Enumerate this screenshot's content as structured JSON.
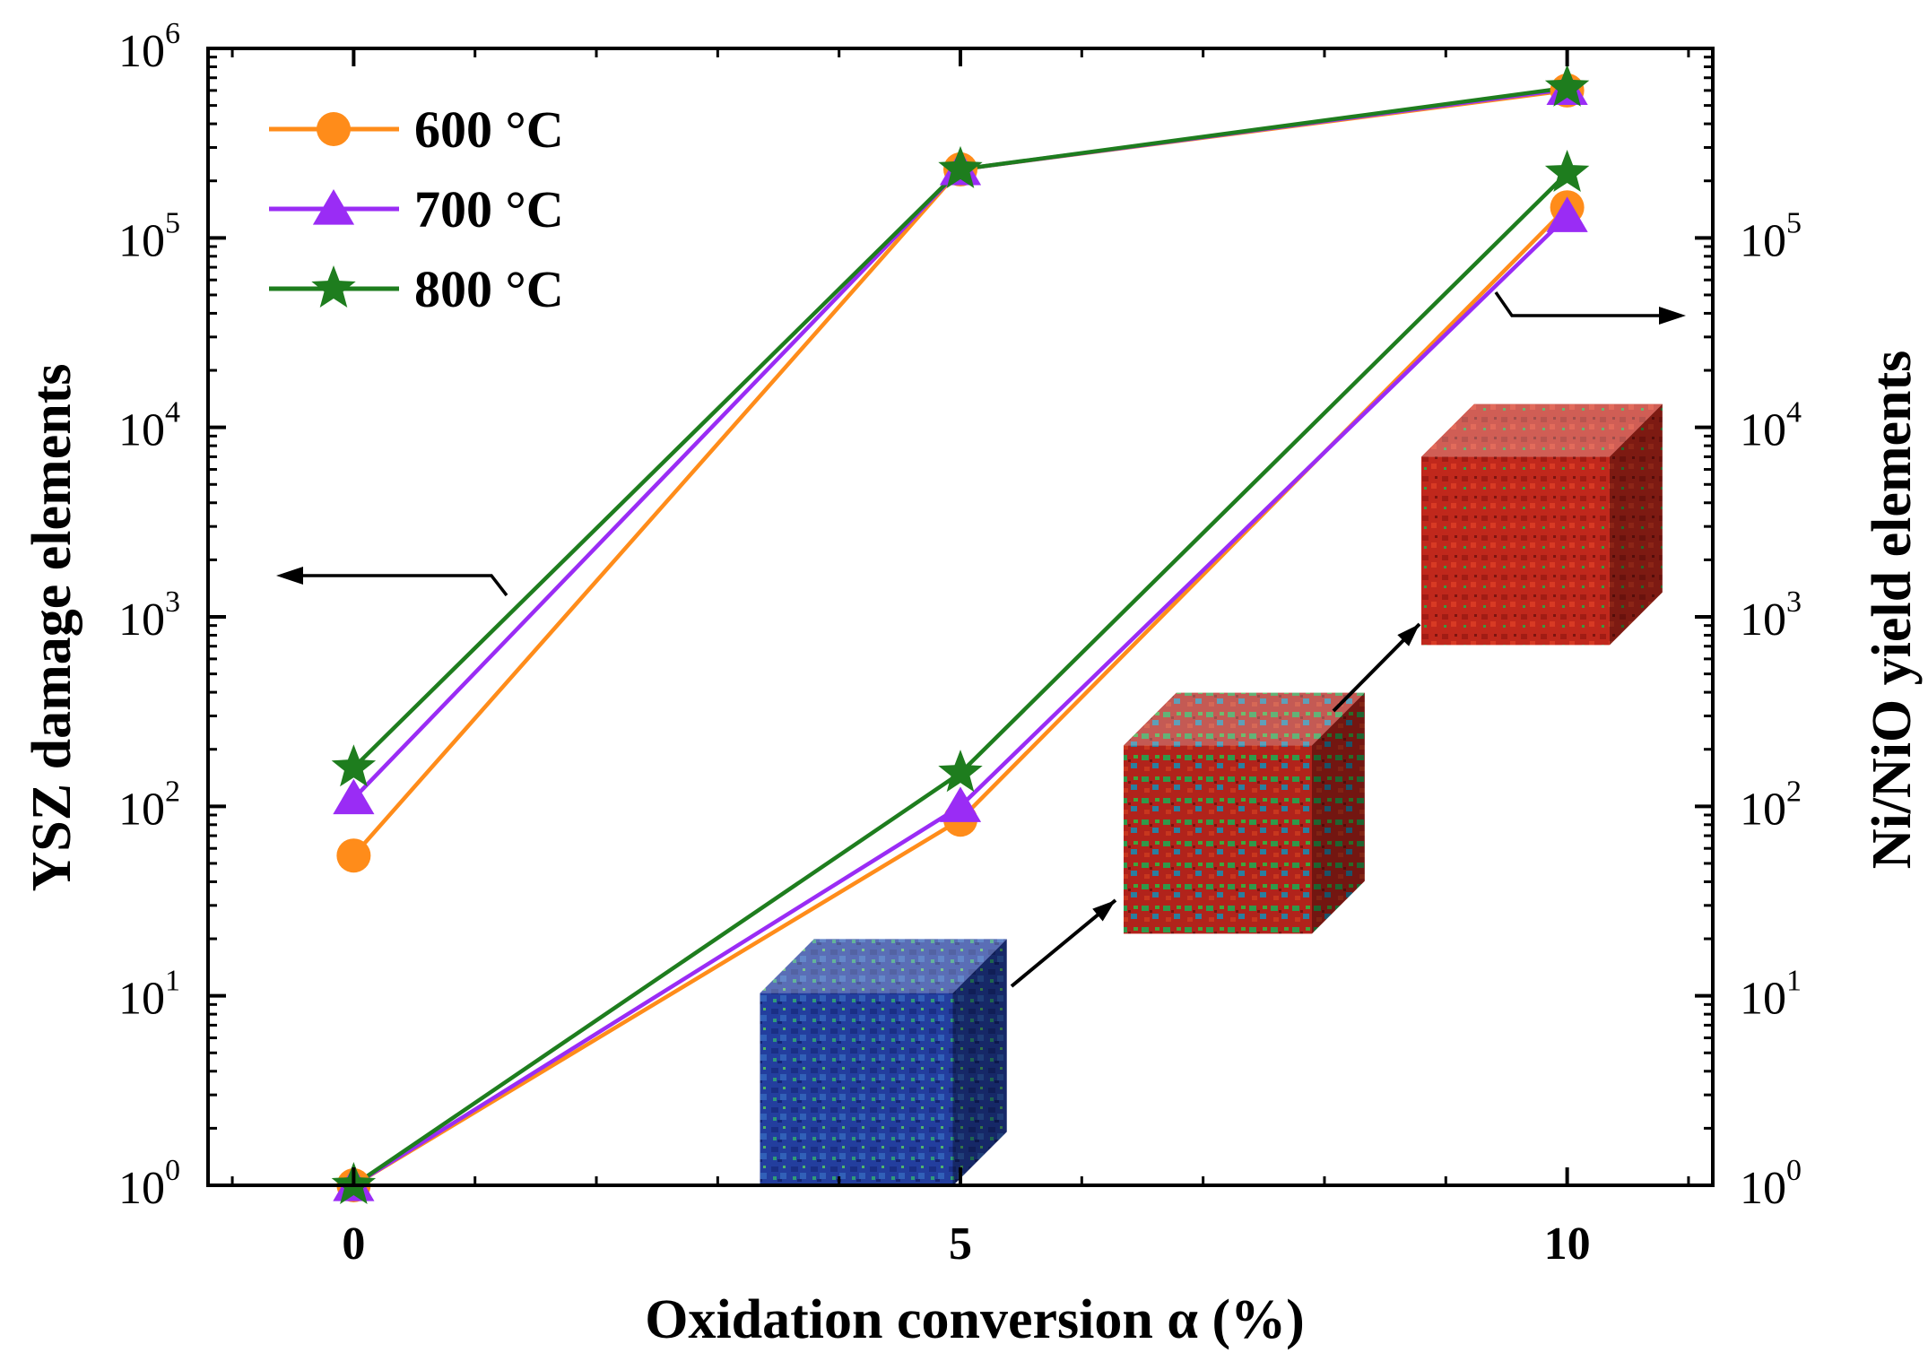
{
  "chart_data": {
    "type": "line",
    "xlabel": "Oxidation conversion α (%)",
    "ylabel_left": "YSZ damage elements",
    "ylabel_right": "Ni/NiO  yield elements",
    "x": [
      0,
      5,
      10
    ],
    "xticks": [
      "0",
      "5",
      "10"
    ],
    "xlim": [
      -1.2,
      11.2
    ],
    "yscale": "log",
    "ylim_left": [
      1,
      1000000
    ],
    "ylim_right": [
      1,
      1000000
    ],
    "yticks_left": [
      {
        "base": "10",
        "exp": "0"
      },
      {
        "base": "10",
        "exp": "1"
      },
      {
        "base": "10",
        "exp": "2"
      },
      {
        "base": "10",
        "exp": "3"
      },
      {
        "base": "10",
        "exp": "4"
      },
      {
        "base": "10",
        "exp": "5"
      },
      {
        "base": "10",
        "exp": "6"
      }
    ],
    "yticks_right": [
      {
        "base": "10",
        "exp": "0"
      },
      {
        "base": "10",
        "exp": "1"
      },
      {
        "base": "10",
        "exp": "2"
      },
      {
        "base": "10",
        "exp": "3"
      },
      {
        "base": "10",
        "exp": "4"
      },
      {
        "base": "10",
        "exp": "5"
      }
    ],
    "legend_position": "top-left",
    "colors": {
      "600": "#ff8c1a",
      "700": "#9a2cf5",
      "800": "#1e7d1e"
    },
    "series": [
      {
        "name": "600 °C",
        "key": "600",
        "axis": "left",
        "marker": "circle",
        "values": [
          55,
          230000,
          600000
        ]
      },
      {
        "name": "700 °C",
        "key": "700",
        "axis": "left",
        "marker": "triangle",
        "values": [
          110,
          230000,
          610000
        ]
      },
      {
        "name": "800 °C",
        "key": "800",
        "axis": "left",
        "marker": "star",
        "values": [
          160,
          230000,
          620000
        ]
      },
      {
        "name": "600 °C",
        "key": "600",
        "axis": "right",
        "marker": "circle",
        "values": [
          1,
          85,
          145000
        ]
      },
      {
        "name": "700 °C",
        "key": "700",
        "axis": "right",
        "marker": "triangle",
        "values": [
          1,
          100,
          130000
        ]
      },
      {
        "name": "800 °C",
        "key": "800",
        "axis": "right",
        "marker": "star",
        "values": [
          1,
          150,
          220000
        ]
      }
    ],
    "annotations": [
      {
        "type": "arrow",
        "direction": "left",
        "meaning": "left-axis curves"
      },
      {
        "type": "arrow",
        "direction": "right",
        "meaning": "right-axis curves"
      },
      {
        "type": "inset-image",
        "description": "blue voxel cube"
      },
      {
        "type": "inset-image",
        "description": "green-red voxel cube"
      },
      {
        "type": "inset-image",
        "description": "red voxel cube"
      }
    ]
  }
}
